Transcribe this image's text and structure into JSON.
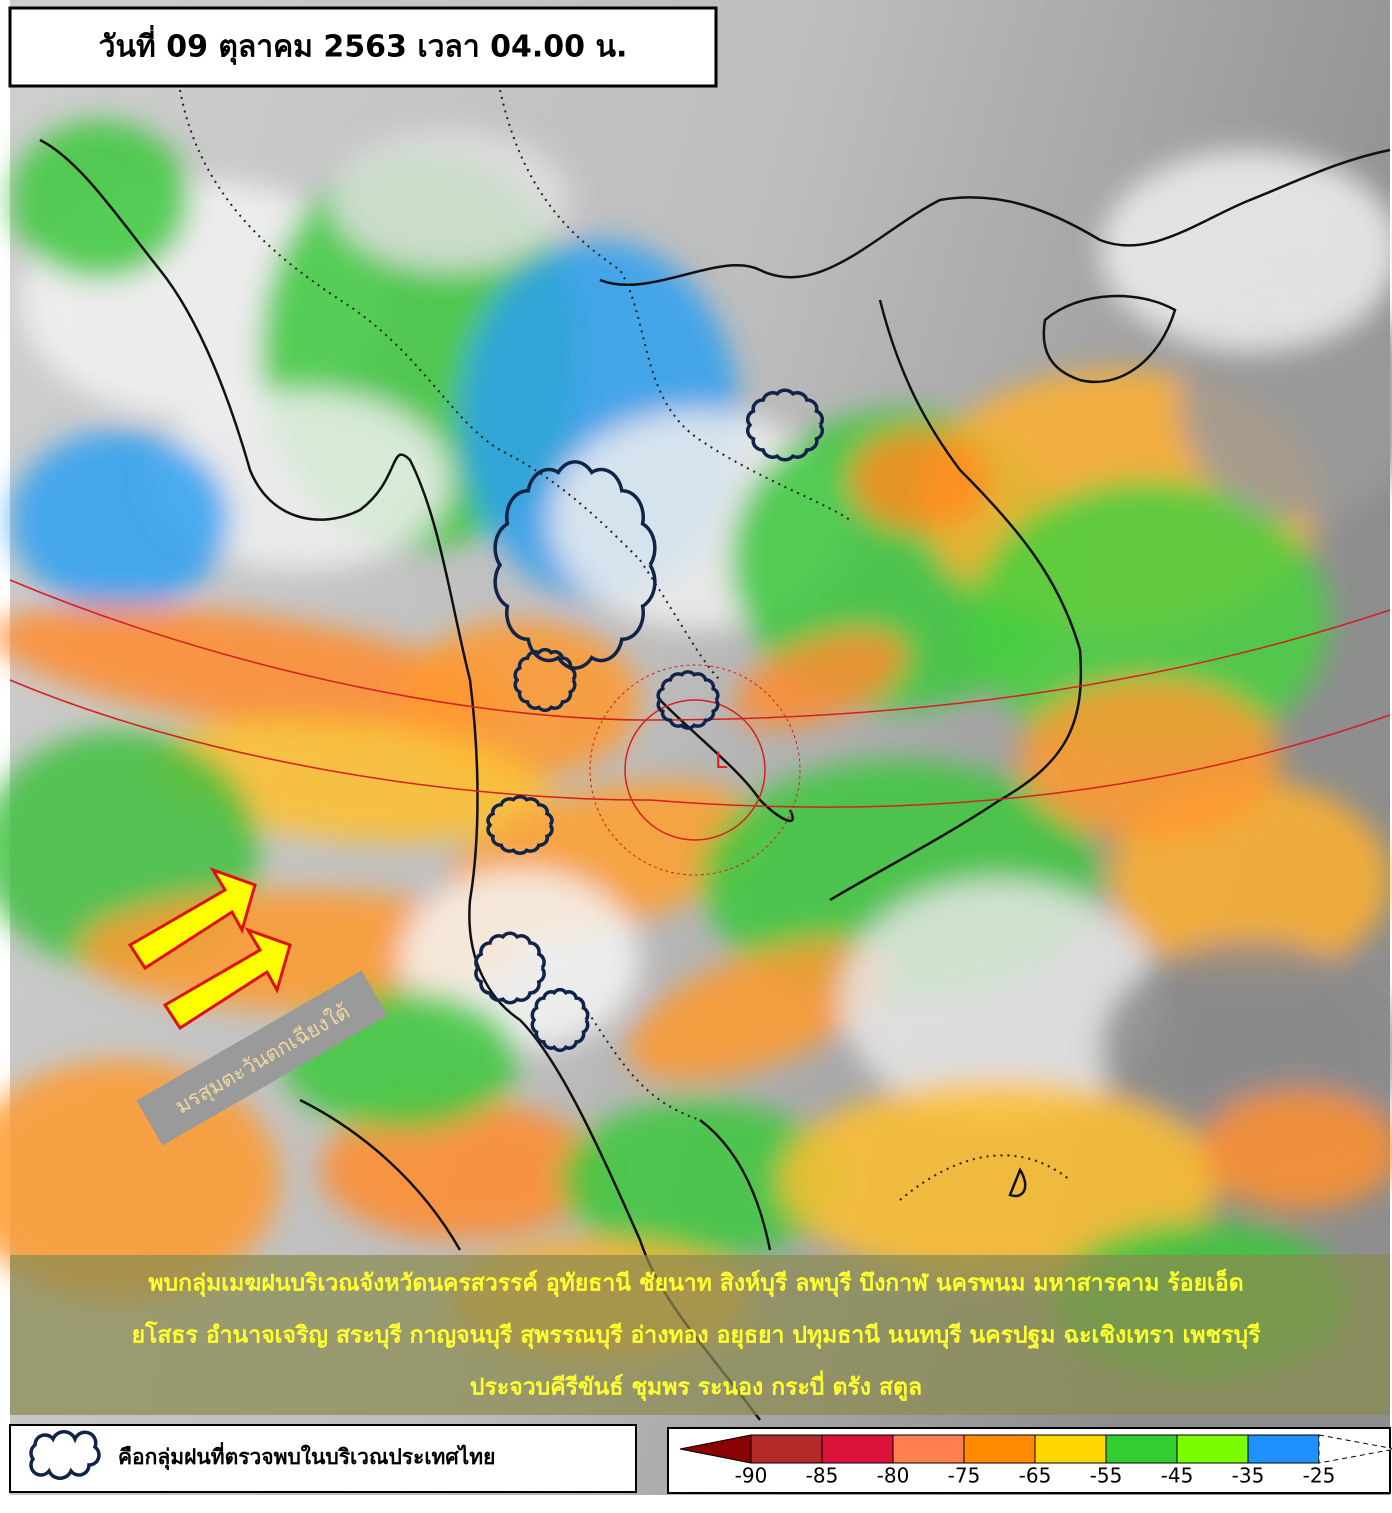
{
  "title": "วันที่ 09 ตุลาคม 2563 เวลา 04.00 น.",
  "monsoon_label": "มรสุมตะวันตกเฉียงใต้",
  "low_label": "L",
  "summary": [
    "พบกลุ่มเมฆฝนบริเวณจังหวัดนครสวรรค์ อุทัยธานี ชัยนาท สิงห์บุรี ลพบุรี บึงกาฬ นครพนม มหาสารคาม ร้อยเอ็ด",
    "ยโสธร อำนาจเจริญ สระบุรี กาญจนบุรี สุพรรณบุรี อ่างทอง อยุธยา ปทุมธานี นนทบุรี นครปฐม ฉะเชิงเทรา เพชรบุรี",
    "ประจวบคีรีขันธ์ ชุมพร ระนอง กระบี่ ตรัง สตูล"
  ],
  "legend": {
    "label": "คือกลุ่มฝนที่ตรวจพบในบริเวณประเทศไทย"
  },
  "colorbar": {
    "colors": [
      "#8b0000",
      "#b22a2a",
      "#dc143c",
      "#ff7f50",
      "#ff8c00",
      "#ffd700",
      "#32cd32",
      "#7cfc00",
      "#1e90ff",
      "#ffffff"
    ],
    "ticks": [
      -90,
      -85,
      -80,
      -75,
      -65,
      -55,
      -45,
      -35,
      -25
    ]
  }
}
